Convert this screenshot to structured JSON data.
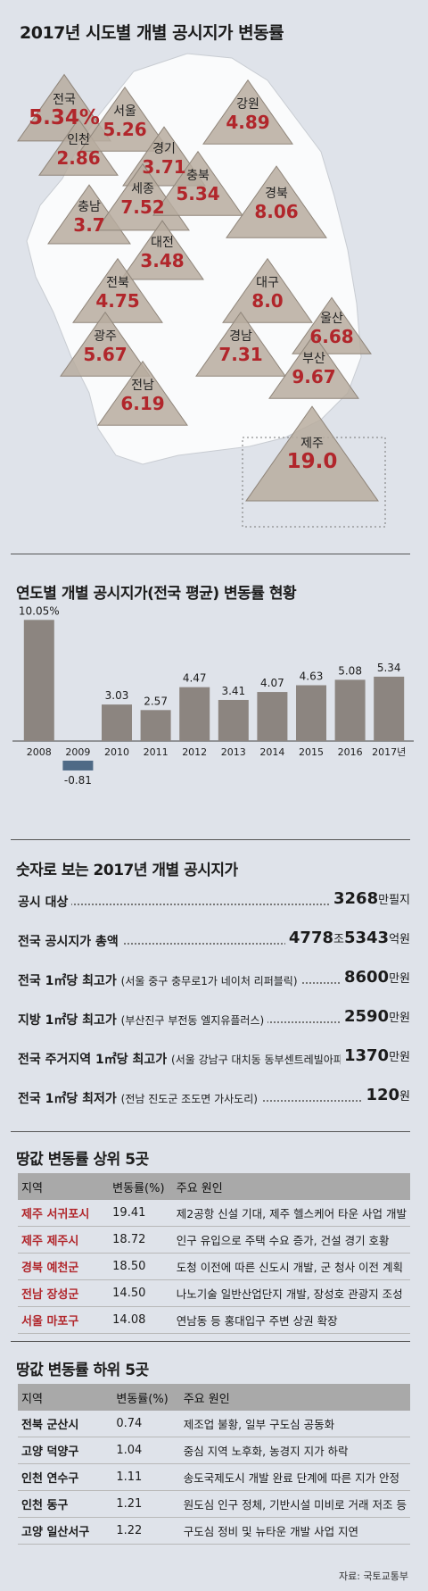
{
  "map_title": "2017년 시도별 개별 공시지가 변동률",
  "regions": [
    {
      "name": "전국",
      "value": "5.34%"
    },
    {
      "name": "인천",
      "value": "2.86"
    },
    {
      "name": "서울",
      "value": "5.26"
    },
    {
      "name": "경기",
      "value": "3.71"
    },
    {
      "name": "강원",
      "value": "4.89"
    },
    {
      "name": "충남",
      "value": "3.7"
    },
    {
      "name": "세종",
      "value": "7.52"
    },
    {
      "name": "충북",
      "value": "5.34"
    },
    {
      "name": "대전",
      "value": "3.48"
    },
    {
      "name": "경북",
      "value": "8.06"
    },
    {
      "name": "전북",
      "value": "4.75"
    },
    {
      "name": "대구",
      "value": "8.0"
    },
    {
      "name": "울산",
      "value": "6.68"
    },
    {
      "name": "광주",
      "value": "5.67"
    },
    {
      "name": "경남",
      "value": "7.31"
    },
    {
      "name": "부산",
      "value": "9.67"
    },
    {
      "name": "전남",
      "value": "6.19"
    },
    {
      "name": "제주",
      "value": "19.0"
    }
  ],
  "chart_data": {
    "type": "bar",
    "title": "연도별 개별 공시지가(전국 평균) 변동률 현황",
    "categories": [
      "2008",
      "2009",
      "2010",
      "2011",
      "2012",
      "2013",
      "2014",
      "2015",
      "2016",
      "2017년"
    ],
    "values": [
      10.05,
      -0.81,
      3.03,
      2.57,
      4.47,
      3.41,
      4.07,
      4.63,
      5.08,
      5.34
    ],
    "value_labels": [
      "10.05%",
      "-0.81",
      "3.03",
      "2.57",
      "4.47",
      "3.41",
      "4.07",
      "4.63",
      "5.08",
      "5.34"
    ],
    "ylim": [
      -0.81,
      10.05
    ],
    "colors": {
      "positive": "#8c8580",
      "negative": "#4f6a86"
    }
  },
  "stats_title": "숫자로 보는 2017년 개별 공시지가",
  "stats": [
    {
      "label": "공시 대상",
      "sub": "",
      "num1": "3268",
      "unit1": "만필지",
      "num2": "",
      "unit2": ""
    },
    {
      "label": "전국 공시지가 총액",
      "sub": "",
      "num1": "4778",
      "unit1": "조",
      "num2": "5343",
      "unit2": "억원"
    },
    {
      "label": "전국 1㎡당 최고가",
      "sub": "(서울 중구  충무로1가 네이처 리퍼블릭)",
      "num1": "8600",
      "unit1": "만원",
      "num2": "",
      "unit2": ""
    },
    {
      "label": "지방 1㎡당 최고가",
      "sub": "(부산진구 부전동 엘지유플러스)",
      "num1": "2590",
      "unit1": "만원",
      "num2": "",
      "unit2": ""
    },
    {
      "label": "전국 주거지역 1㎡당 최고가",
      "sub": "(서울 강남구 대치동 동부센트레빌아파트)",
      "num1": "1370",
      "unit1": "만원",
      "num2": "",
      "unit2": ""
    },
    {
      "label": "전국 1㎡당 최저가",
      "sub": "(전남 진도군 조도면 가사도리)",
      "num1": "120",
      "unit1": "원",
      "num2": "",
      "unit2": ""
    }
  ],
  "top5": {
    "title": "땅값 변동률 상위 5곳",
    "headers": [
      "지역",
      "변동률(%)",
      "주요 원인"
    ],
    "rows": [
      [
        "제주 서귀포시",
        "19.41",
        "제2공항 신설 기대, 제주 헬스케어 타운 사업 개발"
      ],
      [
        "제주 제주시",
        "18.72",
        "인구 유입으로 주택 수요 증가, 건설 경기 호황"
      ],
      [
        "경북 예천군",
        "18.50",
        "도청 이전에 따른 신도시 개발, 군 청사 이전 계획"
      ],
      [
        "전남 장성군",
        "14.50",
        "나노기술 일반산업단지 개발, 장성호 관광지 조성"
      ],
      [
        "서울 마포구",
        "14.08",
        "연남동 등 홍대입구 주변 상권 확장"
      ]
    ]
  },
  "bottom5": {
    "title": "땅값 변동률 하위 5곳",
    "headers": [
      "지역",
      "변동률(%)",
      "주요 원인"
    ],
    "rows": [
      [
        "전북 군산시",
        "0.74",
        "제조업 불황, 일부 구도심 공동화"
      ],
      [
        "고양 덕양구",
        "1.04",
        "중심 지역 노후화, 농경지 지가 하락"
      ],
      [
        "인천 연수구",
        "1.11",
        "송도국제도시 개발 완료 단계에 따른 지가 안정"
      ],
      [
        "인천 동구",
        "1.21",
        "원도심 인구 정체, 기반시설 미비로 거래 저조 등"
      ],
      [
        "고양 일산서구",
        "1.22",
        "구도심 정비 및 뉴타운 개발 사업 지연"
      ]
    ]
  },
  "source": "자료: 국토교통부"
}
